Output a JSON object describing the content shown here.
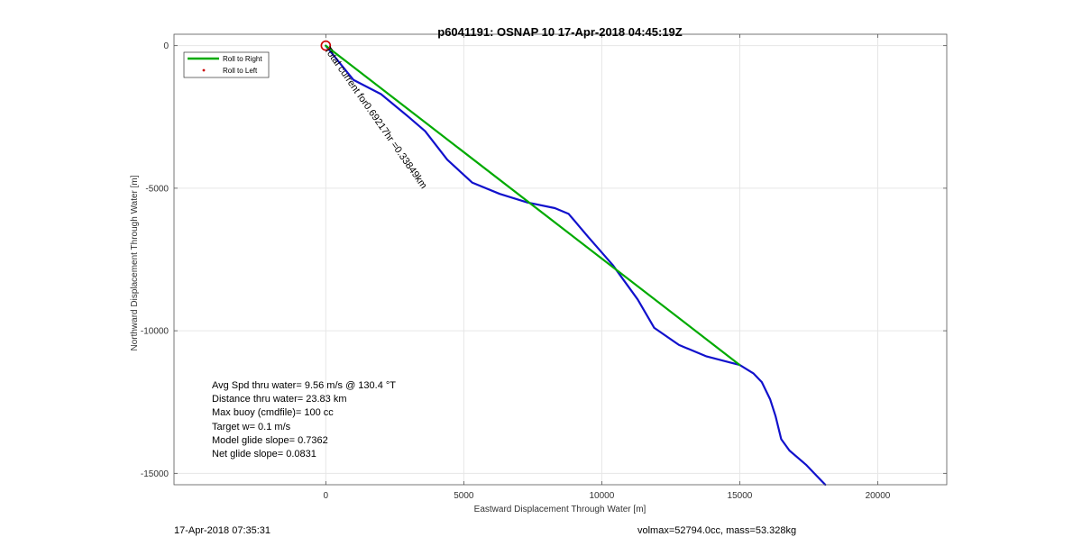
{
  "footer": {
    "left": "17-Apr-2018 07:35:31",
    "right": "volmax=52794.0cc, mass=53.328kg"
  },
  "chart_data": {
    "type": "line",
    "title": "p6041191: OSNAP 10 17-Apr-2018 04:45:19Z",
    "xlabel": "Eastward Displacement Through Water [m]",
    "ylabel": "Northward Displacement Through Water [m]",
    "xlim": [
      -5500,
      22500
    ],
    "ylim": [
      -15400,
      400
    ],
    "xticks": [
      0,
      5000,
      10000,
      15000,
      20000
    ],
    "yticks": [
      0,
      -5000,
      -10000,
      -15000
    ],
    "grid": true,
    "legend": {
      "placement": "top-left",
      "entries": [
        {
          "label": "Roll to Right",
          "color": "#00aa00",
          "style": "line"
        },
        {
          "label": "Roll to Left",
          "color": "#cc0000",
          "style": "dot"
        }
      ]
    },
    "series": [
      {
        "color": "#1111cc",
        "x": [
          0,
          1000,
          2000,
          3000,
          3600,
          4400,
          5300,
          6300,
          7300,
          8300,
          8800,
          9500,
          10400,
          11300,
          11900,
          12800,
          13800,
          14600,
          15000,
          15500,
          15800,
          16100,
          16300,
          16500,
          16800,
          17400,
          17800,
          18100
        ],
        "y": [
          0,
          -1200,
          -1700,
          -2500,
          -3000,
          -4000,
          -4800,
          -5200,
          -5500,
          -5700,
          -5900,
          -6700,
          -7700,
          -8900,
          -9900,
          -10500,
          -10900,
          -11100,
          -11200,
          -11500,
          -11800,
          -12400,
          -13000,
          -13800,
          -14200,
          -14700,
          -15100,
          -15400
        ]
      },
      {
        "color": "#00aa00",
        "x": [
          0,
          15000
        ],
        "y": [
          0,
          -11200
        ]
      }
    ],
    "markers": [
      {
        "x": 0,
        "y": 0,
        "color": "#cc0000",
        "shape": "circle"
      }
    ],
    "annotations": [
      {
        "text": "Total current for0.69217hr =0.33849km",
        "x": 0,
        "y": 0,
        "angle": 55
      }
    ],
    "stats": [
      "Avg Spd thru water=  9.56 m/s @ 130.4 °T",
      "Distance thru water= 23.83 km",
      "Max buoy (cmdfile)= 100 cc",
      "Target w= 0.1 m/s",
      "Model glide slope= 0.7362",
      "Net glide slope= 0.0831"
    ]
  }
}
